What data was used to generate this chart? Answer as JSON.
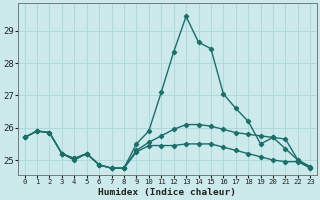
{
  "title": "",
  "xlabel": "Humidex (Indice chaleur)",
  "ylabel": "",
  "background_color": "#cce9ec",
  "grid_color": "#b0d8dc",
  "line_color": "#1c6e68",
  "x": [
    0,
    1,
    2,
    3,
    4,
    5,
    6,
    7,
    8,
    9,
    10,
    11,
    12,
    13,
    14,
    15,
    16,
    17,
    18,
    19,
    20,
    21,
    22,
    23
  ],
  "line1": [
    25.7,
    25.9,
    25.85,
    25.2,
    25.0,
    25.2,
    24.85,
    24.75,
    24.75,
    25.3,
    25.55,
    25.75,
    25.95,
    26.1,
    26.1,
    26.05,
    25.95,
    25.85,
    25.8,
    25.75,
    25.7,
    25.65,
    25.0,
    24.8
  ],
  "line2": [
    25.7,
    25.9,
    25.85,
    25.2,
    25.05,
    25.2,
    24.85,
    24.75,
    24.75,
    25.5,
    25.9,
    27.1,
    28.35,
    29.45,
    28.65,
    28.45,
    27.05,
    26.6,
    26.2,
    25.5,
    25.7,
    25.35,
    25.0,
    24.75
  ],
  "line3": [
    25.7,
    25.9,
    25.85,
    25.2,
    25.05,
    25.2,
    24.85,
    24.75,
    24.75,
    25.25,
    25.45,
    25.45,
    25.45,
    25.5,
    25.5,
    25.5,
    25.4,
    25.3,
    25.2,
    25.1,
    25.0,
    24.95,
    24.95,
    24.75
  ],
  "ylim": [
    24.55,
    29.85
  ],
  "yticks": [
    25,
    26,
    27,
    28,
    29
  ],
  "xlim": [
    -0.5,
    23.5
  ],
  "xticks": [
    0,
    1,
    2,
    3,
    4,
    5,
    6,
    7,
    8,
    9,
    10,
    11,
    12,
    13,
    14,
    15,
    16,
    17,
    18,
    19,
    20,
    21,
    22,
    23
  ]
}
